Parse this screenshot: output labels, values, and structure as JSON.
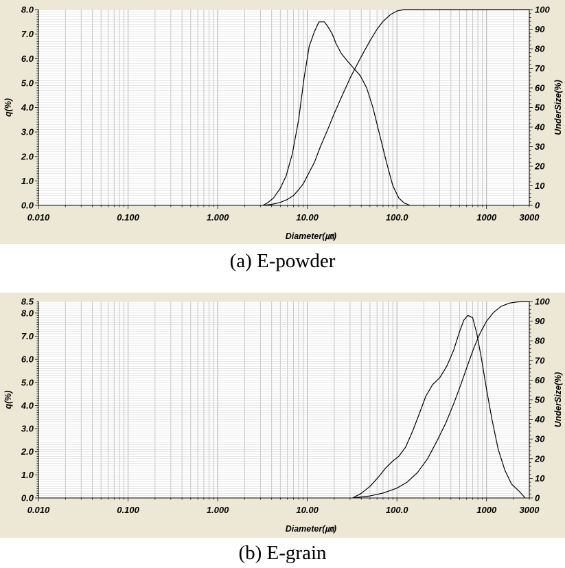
{
  "captions": [
    "(a) E-powder",
    "(b) E-grain"
  ],
  "chart_data": [
    {
      "type": "line",
      "xlabel": "Diameter(㎛)",
      "ylabel": "q(%)",
      "y2label": "UnderSize(%)",
      "xscale": "log",
      "xlim": [
        0.01,
        3000
      ],
      "ylim": [
        0,
        8.0
      ],
      "y2lim": [
        0,
        100
      ],
      "xticks": [
        "0.010",
        "0.100",
        "1.000",
        "10.00",
        "100.0",
        "1000",
        "3000"
      ],
      "xtick_values": [
        0.01,
        0.1,
        1,
        10,
        100,
        1000,
        3000
      ],
      "yticks": [
        "0.0",
        "1.0",
        "2.0",
        "3.0",
        "4.0",
        "5.0",
        "6.0",
        "7.0",
        "8.0"
      ],
      "ytick_values": [
        0,
        1,
        2,
        3,
        4,
        5,
        6,
        7,
        8
      ],
      "y2ticks": [
        "0",
        "10",
        "20",
        "30",
        "40",
        "50",
        "60",
        "70",
        "80",
        "90",
        "100"
      ],
      "y2tick_values": [
        0,
        10,
        20,
        30,
        40,
        50,
        60,
        70,
        80,
        90,
        100
      ],
      "grid": true,
      "series": [
        {
          "axis": "left",
          "x": [
            3.2,
            3.6,
            4.2,
            5.0,
            5.8,
            6.8,
            8.0,
            9.2,
            10.5,
            12.0,
            13.5,
            15.5,
            17.0,
            19.0,
            21.0,
            24.0,
            28.0,
            33.0,
            39.0,
            46.0,
            54.0,
            64.0,
            76.0,
            90.0,
            105.0,
            120.0,
            140.0
          ],
          "y": [
            0.0,
            0.1,
            0.3,
            0.7,
            1.2,
            2.1,
            3.5,
            5.2,
            6.5,
            7.1,
            7.5,
            7.5,
            7.3,
            7.0,
            6.6,
            6.2,
            5.9,
            5.6,
            5.3,
            4.8,
            4.0,
            2.9,
            1.8,
            0.8,
            0.3,
            0.1,
            0.0
          ]
        },
        {
          "axis": "right",
          "x": [
            3.2,
            4.0,
            5.0,
            6.0,
            7.0,
            8.0,
            9.0,
            10.0,
            12.0,
            14.0,
            17.0,
            20.0,
            25.0,
            30.0,
            40.0,
            50.0,
            60.0,
            70.0,
            85.0,
            100.0,
            120.0,
            150.0,
            300.0,
            1000.0,
            3000.0
          ],
          "y": [
            0,
            0.5,
            1.5,
            3,
            5,
            8,
            11,
            15,
            22,
            30,
            39,
            47,
            57,
            65,
            76,
            84,
            90,
            94,
            97.5,
            99.3,
            100,
            100,
            100,
            100,
            100
          ]
        }
      ]
    },
    {
      "type": "line",
      "xlabel": "Diameter(㎛)",
      "ylabel": "q(%)",
      "y2label": "UnderSize(%)",
      "xscale": "log",
      "xlim": [
        0.01,
        3000
      ],
      "ylim": [
        0,
        8.5
      ],
      "y2lim": [
        0,
        100
      ],
      "xticks": [
        "0.010",
        "0.100",
        "1.000",
        "10.00",
        "100.0",
        "1000",
        "3000"
      ],
      "xtick_values": [
        0.01,
        0.1,
        1,
        10,
        100,
        1000,
        3000
      ],
      "yticks": [
        "0.0",
        "1.0",
        "2.0",
        "3.0",
        "4.0",
        "5.0",
        "6.0",
        "7.0",
        "8.0",
        "8.5"
      ],
      "ytick_values": [
        0,
        1,
        2,
        3,
        4,
        5,
        6,
        7,
        8,
        8.5
      ],
      "y2ticks": [
        "0",
        "10",
        "20",
        "30",
        "40",
        "50",
        "60",
        "70",
        "80",
        "90",
        "100"
      ],
      "y2tick_values": [
        0,
        10,
        20,
        30,
        40,
        50,
        60,
        70,
        80,
        90,
        100
      ],
      "grid": true,
      "series": [
        {
          "axis": "left",
          "x": [
            32,
            40,
            50,
            62,
            75,
            90,
            105,
            125,
            150,
            180,
            210,
            250,
            300,
            360,
            430,
            500,
            560,
            620,
            700,
            780,
            880,
            1000,
            1150,
            1350,
            1600,
            1900,
            2300,
            2700
          ],
          "y": [
            0.0,
            0.2,
            0.5,
            0.9,
            1.3,
            1.6,
            1.8,
            2.2,
            2.9,
            3.7,
            4.4,
            4.9,
            5.2,
            5.7,
            6.4,
            7.2,
            7.7,
            7.9,
            7.8,
            7.1,
            6.0,
            4.7,
            3.4,
            2.1,
            1.2,
            0.6,
            0.3,
            0.0
          ]
        },
        {
          "axis": "right",
          "x": [
            32,
            50,
            70,
            100,
            130,
            170,
            220,
            280,
            350,
            430,
            520,
            620,
            730,
            850,
            1000,
            1200,
            1450,
            1800,
            2200,
            2700,
            3000
          ],
          "y": [
            0,
            1,
            2.5,
            5,
            8,
            13,
            20,
            29,
            38,
            48,
            58,
            68,
            77,
            84,
            90,
            94.5,
            97.5,
            99.2,
            99.8,
            100,
            100
          ]
        }
      ]
    }
  ]
}
